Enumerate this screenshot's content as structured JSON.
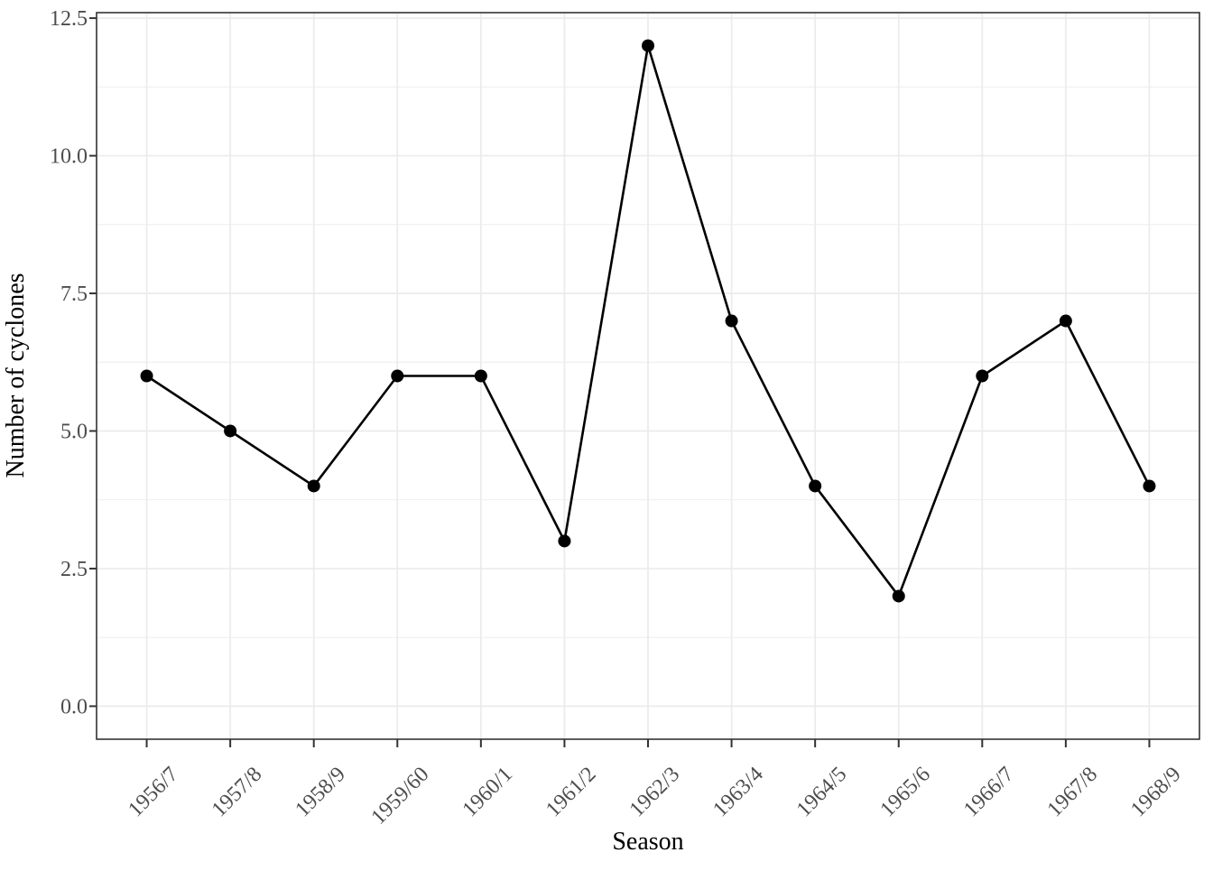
{
  "figure": {
    "background_color": "#FFFFFF",
    "title": ""
  },
  "chart_data": {
    "type": "line",
    "title": "",
    "xlabel": "Season",
    "ylabel": "Number of cyclones",
    "categories": [
      "1956/7",
      "1957/8",
      "1958/9",
      "1959/60",
      "1960/1",
      "1961/2",
      "1962/3",
      "1963/4",
      "1964/5",
      "1965/6",
      "1966/7",
      "1967/8",
      "1968/9"
    ],
    "series": [
      {
        "name": "cyclones",
        "values": [
          6,
          5,
          4,
          6,
          6,
          3,
          12,
          7,
          4,
          2,
          6,
          7,
          4
        ]
      }
    ],
    "ylim": [
      -0.6,
      12.6
    ],
    "y_major_ticks": [
      0,
      2.5,
      5,
      7.5,
      10,
      12.5
    ],
    "y_major_tick_labels": [
      "0.0",
      "2.5",
      "5.0",
      "7.5",
      "10.0",
      "12.5"
    ],
    "y_minor_ticks": [
      1.25,
      3.75,
      6.25,
      8.75,
      11.25
    ],
    "grid": "major-and-minor-horizontal, major-vertical",
    "legend": "none",
    "x_tick_label_angle_deg": 45,
    "style": {
      "line_color": "#000000",
      "point_color": "#000000",
      "grid_color": "#EBEBEB",
      "panel_border_color": "#333333",
      "tick_mark_color": "#333333",
      "tick_label_color": "#4D4D4D",
      "axis_title_color": "#000000",
      "panel_background": "#FFFFFF"
    }
  }
}
